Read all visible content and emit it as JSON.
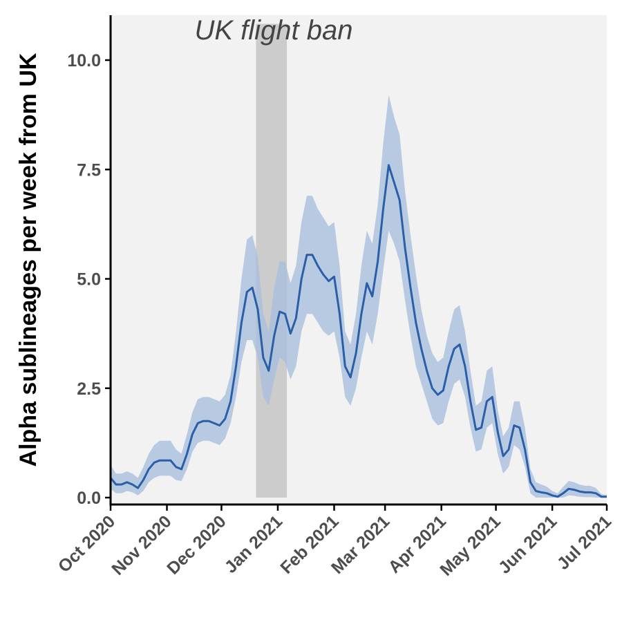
{
  "chart_data": {
    "type": "area",
    "title": "",
    "ylabel": "Alpha sublineages per week from UK",
    "xlabel": "",
    "ylim": [
      0,
      11
    ],
    "xlim": [
      "2020-10-01",
      "2021-07-01"
    ],
    "yticks": [
      0,
      2.5,
      5,
      7.5,
      10
    ],
    "ytick_labels": [
      "0.0",
      "2.5",
      "5.0",
      "7.5",
      "10.0"
    ],
    "xticks": [
      "2020-10-01",
      "2020-11-01",
      "2020-12-01",
      "2021-01-01",
      "2021-02-01",
      "2021-03-01",
      "2021-04-01",
      "2021-05-01",
      "2021-06-01",
      "2021-07-01"
    ],
    "xtick_labels": [
      "Oct 2020",
      "Nov 2020",
      "Dec 2020",
      "Jan 2021",
      "Feb 2021",
      "Mar 2021",
      "Apr 2021",
      "May 2021",
      "Jun 2021",
      "Jul 2021"
    ],
    "grid": false,
    "shaded_region": {
      "label": "UK flight ban",
      "start": "2020-12-20",
      "end": "2021-01-06",
      "color": "#cccccc"
    },
    "colors": {
      "line": "#2a5fa8",
      "ribbon": "#a9bfdc",
      "panel_bg": "#f2f2f2"
    },
    "series": [
      {
        "x": [
          "2020-10-01",
          "2020-10-04",
          "2020-10-07",
          "2020-10-10",
          "2020-10-13",
          "2020-10-16",
          "2020-10-19",
          "2020-10-22",
          "2020-10-25",
          "2020-10-28",
          "2020-10-31",
          "2020-11-03",
          "2020-11-06",
          "2020-11-09",
          "2020-11-12",
          "2020-11-15",
          "2020-11-18",
          "2020-11-21",
          "2020-11-24",
          "2020-11-27",
          "2020-11-30",
          "2020-12-03",
          "2020-12-06",
          "2020-12-09",
          "2020-12-12",
          "2020-12-15",
          "2020-12-18",
          "2020-12-21",
          "2020-12-24",
          "2020-12-27",
          "2020-12-30",
          "2021-01-02",
          "2021-01-05",
          "2021-01-08",
          "2021-01-11",
          "2021-01-14",
          "2021-01-17",
          "2021-01-20",
          "2021-01-23",
          "2021-01-26",
          "2021-01-29",
          "2021-02-01",
          "2021-02-04",
          "2021-02-07",
          "2021-02-10",
          "2021-02-13",
          "2021-02-16",
          "2021-02-19",
          "2021-02-22",
          "2021-02-25",
          "2021-02-28",
          "2021-03-03",
          "2021-03-06",
          "2021-03-09",
          "2021-03-12",
          "2021-03-15",
          "2021-03-18",
          "2021-03-21",
          "2021-03-24",
          "2021-03-27",
          "2021-03-30",
          "2021-04-02",
          "2021-04-05",
          "2021-04-08",
          "2021-04-11",
          "2021-04-14",
          "2021-04-17",
          "2021-04-20",
          "2021-04-23",
          "2021-04-26",
          "2021-04-29",
          "2021-05-02",
          "2021-05-05",
          "2021-05-08",
          "2021-05-11",
          "2021-05-14",
          "2021-05-17",
          "2021-05-20",
          "2021-05-23",
          "2021-05-26",
          "2021-05-29",
          "2021-06-01",
          "2021-06-04",
          "2021-06-07",
          "2021-06-10",
          "2021-06-13",
          "2021-06-16",
          "2021-06-19",
          "2021-06-22",
          "2021-06-25",
          "2021-06-28",
          "2021-07-01"
        ],
        "y": [
          0.45,
          0.3,
          0.3,
          0.35,
          0.3,
          0.22,
          0.4,
          0.65,
          0.8,
          0.85,
          0.85,
          0.85,
          0.7,
          0.65,
          1.0,
          1.45,
          1.7,
          1.75,
          1.75,
          1.7,
          1.65,
          1.8,
          2.2,
          3.0,
          4.0,
          4.7,
          4.8,
          4.3,
          3.2,
          2.9,
          3.7,
          4.25,
          4.2,
          3.75,
          4.1,
          5.0,
          5.55,
          5.55,
          5.3,
          5.1,
          4.95,
          5.05,
          4.2,
          3.0,
          2.75,
          3.3,
          4.2,
          4.9,
          4.6,
          5.4,
          6.6,
          7.6,
          7.2,
          6.8,
          5.7,
          4.8,
          4.0,
          3.4,
          2.9,
          2.5,
          2.35,
          2.45,
          3.0,
          3.4,
          3.5,
          3.0,
          2.2,
          1.55,
          1.6,
          2.2,
          2.3,
          1.5,
          0.95,
          1.1,
          1.65,
          1.6,
          1.1,
          0.35,
          0.15,
          0.12,
          0.1,
          0.05,
          0.02,
          0.1,
          0.2,
          0.18,
          0.14,
          0.12,
          0.12,
          0.1,
          0.02,
          0.02
        ],
        "lower": [
          0.2,
          0.1,
          0.1,
          0.15,
          0.12,
          0.05,
          0.15,
          0.35,
          0.45,
          0.5,
          0.5,
          0.5,
          0.4,
          0.38,
          0.65,
          1.05,
          1.25,
          1.3,
          1.3,
          1.25,
          1.2,
          1.35,
          1.7,
          2.3,
          3.1,
          3.6,
          3.6,
          3.2,
          2.3,
          2.1,
          2.7,
          3.2,
          3.1,
          2.7,
          3.0,
          3.8,
          4.2,
          4.2,
          4.0,
          3.8,
          3.7,
          3.8,
          3.2,
          2.3,
          2.1,
          2.5,
          3.2,
          3.8,
          3.5,
          4.2,
          5.2,
          6.1,
          5.8,
          5.4,
          4.5,
          3.7,
          3.0,
          2.6,
          2.2,
          1.8,
          1.65,
          1.7,
          2.2,
          2.6,
          2.7,
          2.3,
          1.6,
          1.05,
          1.1,
          1.6,
          1.7,
          1.0,
          0.55,
          0.7,
          1.2,
          1.1,
          0.7,
          0.1,
          0.0,
          0.0,
          0.0,
          0.0,
          0.0,
          0.0,
          0.05,
          0.04,
          0.02,
          0.01,
          0.01,
          0.0,
          0.0,
          0.0
        ],
        "upper": [
          0.75,
          0.55,
          0.55,
          0.6,
          0.55,
          0.45,
          0.7,
          1.0,
          1.2,
          1.3,
          1.3,
          1.3,
          1.1,
          1.0,
          1.45,
          1.95,
          2.25,
          2.3,
          2.3,
          2.25,
          2.2,
          2.35,
          2.8,
          3.8,
          5.0,
          5.9,
          6.0,
          5.5,
          4.2,
          3.8,
          4.8,
          5.4,
          5.4,
          4.9,
          5.3,
          6.3,
          6.9,
          6.9,
          6.6,
          6.4,
          6.2,
          6.3,
          5.3,
          3.8,
          3.5,
          4.2,
          5.3,
          6.1,
          5.8,
          6.7,
          8.1,
          9.2,
          8.7,
          8.3,
          7.0,
          6.0,
          5.1,
          4.3,
          3.7,
          3.3,
          3.1,
          3.2,
          3.8,
          4.3,
          4.4,
          3.8,
          2.9,
          2.1,
          2.2,
          2.9,
          3.0,
          2.0,
          1.4,
          1.6,
          2.2,
          2.2,
          1.6,
          0.65,
          0.35,
          0.3,
          0.25,
          0.15,
          0.1,
          0.25,
          0.38,
          0.35,
          0.3,
          0.27,
          0.27,
          0.22,
          0.08,
          0.06
        ]
      }
    ]
  }
}
